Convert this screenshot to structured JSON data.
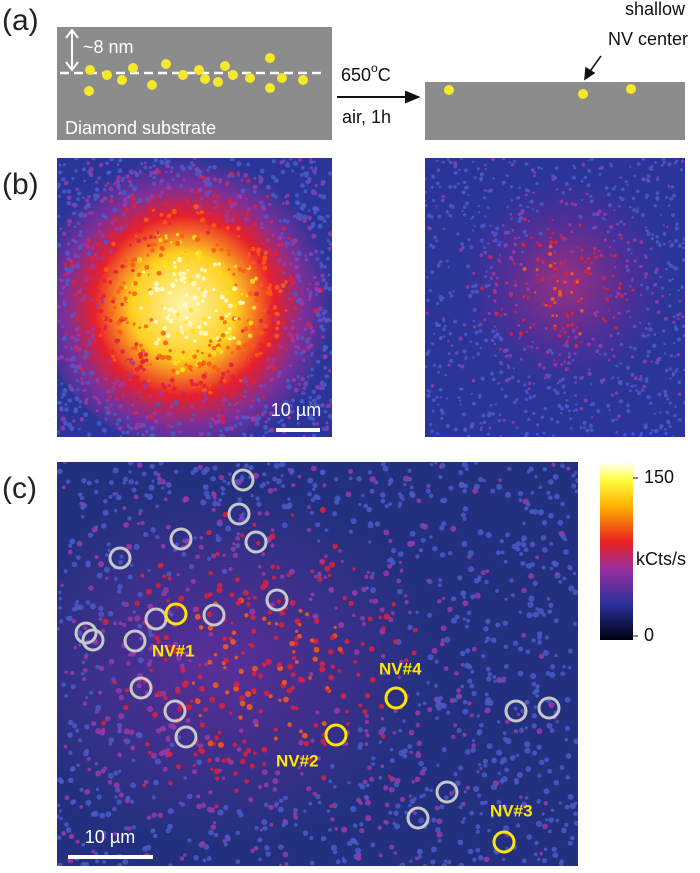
{
  "panel_a": {
    "label": "(a)",
    "depth": "~8 nm",
    "substrate": "Diamond substrate",
    "temperature_value": "650",
    "temperature_sup": "o",
    "temperature_unit": "C",
    "condition": "air, 1h",
    "annotation_line1": "shallow",
    "annotation_line2": "NV center"
  },
  "panel_b": {
    "label": "(b)",
    "scale_bar": "10 µm"
  },
  "panel_c": {
    "label": "(c)",
    "scale_bar": "10 µm",
    "nv_labels": [
      "NV#1",
      "NV#2",
      "NV#3",
      "NV#4"
    ],
    "colorbar": {
      "unit": "kCts/s",
      "ticks": [
        0,
        150
      ]
    }
  }
}
